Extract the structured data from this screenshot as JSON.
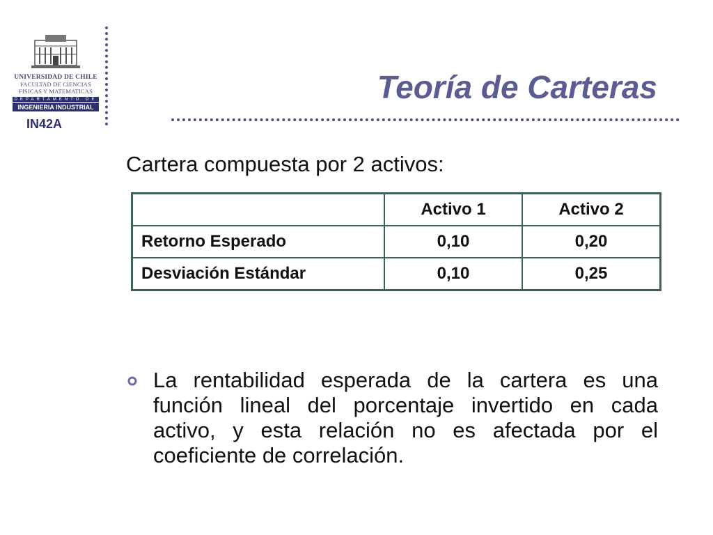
{
  "logo": {
    "line1": "UNIVERSIDAD DE CHILE",
    "line2": "FACULTAD DE CIENCIAS",
    "line3": "FISICAS Y MATEMATICAS",
    "dept": "DEPARTAMENTO DE",
    "dept_name": "INGENIERIA INDUSTRIAL"
  },
  "course_code": "IN42A",
  "title": "Teoría de Carteras",
  "subtitle": "Cartera compuesta por 2 activos:",
  "table": {
    "headers": [
      "",
      "Activo 1",
      "Activo 2"
    ],
    "rows": [
      {
        "label": "Retorno Esperado",
        "a1": "0,10",
        "a2": "0,20"
      },
      {
        "label": "Desviación Estándar",
        "a1": "0,10",
        "a2": "0,25"
      }
    ]
  },
  "bullet": {
    "icon": "ring-bullet-icon",
    "text": "La rentabilidad esperada de la cartera es una función lineal del porcentaje invertido en cada activo, y esta relación no es afectada por el coeficiente de correlación."
  },
  "colors": {
    "title": "#5a5d92",
    "dotted_rule": "#4b4e86",
    "table_border": "#3f5f5c",
    "logo_navy": "#2b2f6d"
  }
}
